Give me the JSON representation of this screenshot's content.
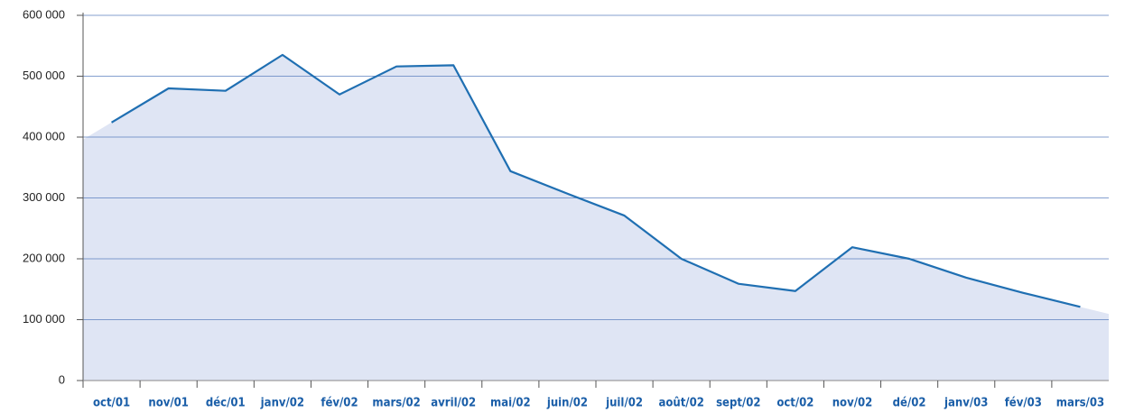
{
  "chart_data": {
    "type": "line",
    "categories": [
      "oct/01",
      "nov/01",
      "déc/01",
      "janv/02",
      "fév/02",
      "mars/02",
      "avril/02",
      "mai/02",
      "juin/02",
      "juil/02",
      "août/02",
      "sept/02",
      "oct/02",
      "nov/02",
      "dé/02",
      "janv/03",
      "fév/03",
      "mars/03"
    ],
    "series": [
      {
        "color": "#1f6fb2",
        "area_color": "#dfe5f4",
        "values": [
          424000,
          480000,
          476000,
          535000,
          470000,
          516000,
          518000,
          344000,
          307000,
          271000,
          200000,
          159000,
          147000,
          219000,
          200000,
          169000,
          144000,
          121000
        ]
      }
    ],
    "ylim": [
      0,
      600000
    ],
    "yticks": [
      0,
      {
        "value": 100000,
        "label": "100 000"
      },
      {
        "value": 200000,
        "label": "200 000"
      },
      {
        "value": 300000,
        "label": "300 000"
      },
      {
        "value": 400000,
        "label": "400 000"
      },
      {
        "value": 500000,
        "label": "500 000"
      },
      {
        "value": 600000,
        "label": "600 000"
      }
    ],
    "grid": true
  }
}
